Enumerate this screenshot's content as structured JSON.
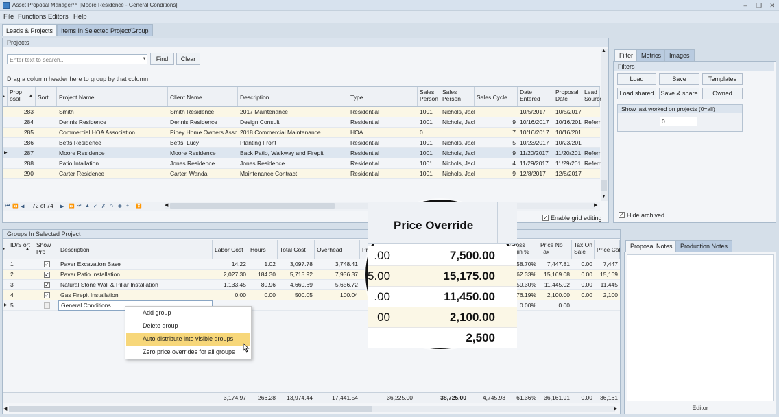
{
  "window": {
    "title": "Asset Proposal Manager™ [Moore Residence - General Conditions]",
    "controls": [
      "–",
      "❐",
      "✕"
    ]
  },
  "menu": [
    "File",
    "Functions",
    "Editors",
    "Help"
  ],
  "main_tabs": [
    "Leads & Projects",
    "Items In Selected Project/Group"
  ],
  "projects": {
    "header": "Projects",
    "search_placeholder": "Enter text to search...",
    "find_label": "Find",
    "clear_label": "Clear",
    "group_hint": "Drag a column header here to group by that column",
    "columns": [
      "Prop osal",
      "Sort",
      "Project Name",
      "Client Name",
      "Description",
      "Type",
      "Sales Person",
      "Sales Person",
      "Sales Cycle",
      "Date Entered",
      "Proposal Date",
      "Lead Source"
    ],
    "rows": [
      {
        "id": "283",
        "name": "Smith",
        "client": "Smith Residence",
        "desc": "2017 Maintenance",
        "type": "Residential",
        "sp": "1001",
        "spn": "Nichols, Jacl",
        "cycle": "",
        "entered": "10/5/2017",
        "prop": "10/5/2017",
        "lead": ""
      },
      {
        "id": "284",
        "name": "Dennis Residence",
        "client": "Dennis Residence",
        "desc": "Design Consult",
        "type": "Residential",
        "sp": "1001",
        "spn": "Nichols, Jacl",
        "cycle": "9",
        "entered": "10/16/2017",
        "prop": "10/16/201",
        "lead": "Referr"
      },
      {
        "id": "285",
        "name": "Commercial HOA Association",
        "client": "Piney Home Owners Assc",
        "desc": "2018 Commercial Maintenance",
        "type": "HOA",
        "sp": "0",
        "spn": "",
        "cycle": "7",
        "entered": "10/16/2017",
        "prop": "10/16/201",
        "lead": ""
      },
      {
        "id": "286",
        "name": "Betts Residence",
        "client": "Betts, Lucy",
        "desc": "Planting Front",
        "type": "Residential",
        "sp": "1001",
        "spn": "Nichols, Jacl",
        "cycle": "5",
        "entered": "10/23/2017",
        "prop": "10/23/201",
        "lead": ""
      },
      {
        "id": "287",
        "name": "Moore Residence",
        "client": "Moore Residence",
        "desc": "Back Patio, Walkway and Firepit",
        "type": "Residential",
        "sp": "1001",
        "spn": "Nichols, Jacl",
        "cycle": "9",
        "entered": "11/20/2017",
        "prop": "11/20/201",
        "lead": "Referr"
      },
      {
        "id": "288",
        "name": "Patio Intallation",
        "client": "Jones Residence",
        "desc": "Jones Residence",
        "type": "Residential",
        "sp": "1001",
        "spn": "Nichols, Jacl",
        "cycle": "4",
        "entered": "11/29/2017",
        "prop": "11/29/201",
        "lead": "Referr"
      },
      {
        "id": "290",
        "name": "Carter Residence",
        "client": "Carter, Wanda",
        "desc": "Maintenance Contract",
        "type": "Residential",
        "sp": "1001",
        "spn": "Nichols, Jacl",
        "cycle": "9",
        "entered": "12/8/2017",
        "prop": "12/8/2017",
        "lead": ""
      }
    ],
    "nav_position": "72 of 74",
    "nav_icons": [
      "⏮",
      "⏪",
      "◀",
      "▶",
      "⏩",
      "⏭",
      "▲",
      "✓",
      "✗",
      "↷",
      "✱",
      "+",
      "⏬"
    ],
    "enable_editing_label": "Enable grid editing"
  },
  "filter_panel": {
    "tabs": [
      "Filter",
      "Metrics",
      "Images"
    ],
    "header": "Filters",
    "buttons": [
      "Load",
      "Save",
      "Templates",
      "Load shared",
      "Save & share",
      "Owned"
    ],
    "last_worked_label": "Show last worked on projects (0=all)",
    "last_worked_value": "0",
    "hide_archived_label": "Hide archived"
  },
  "groups": {
    "header": "Groups In Selected Project",
    "columns": [
      "ID/S ort",
      "Show Pro",
      "Description",
      "Labor Cost",
      "Hours",
      "Total Cost",
      "Overhead",
      "Pr",
      "Gross argin %",
      "Price No Tax",
      "Tax On Sale",
      "Price Cal"
    ],
    "rows": [
      {
        "id": "1",
        "show": true,
        "desc": "Paver Excavation Base",
        "labor": "14.22",
        "hours": "1.02",
        "total": "3,097.78",
        "overhead": "3,748.41",
        "margin": "58.70%",
        "pnt": "7,447.81",
        "tax": "0.00",
        "pc": "7,447"
      },
      {
        "id": "2",
        "show": true,
        "desc": "Paver Patio Installation",
        "labor": "2,027.30",
        "hours": "184.30",
        "total": "5,715.92",
        "overhead": "7,936.37",
        "margin": "62.33%",
        "pnt": "15,169.08",
        "tax": "0.00",
        "pc": "15,169"
      },
      {
        "id": "3",
        "show": true,
        "desc": "Natural Stone Wall & Pillar Installation",
        "labor": "1,133.45",
        "hours": "80.96",
        "total": "4,660.69",
        "overhead": "5,656.72",
        "margin": "59.30%",
        "pnt": "11,445.02",
        "tax": "0.00",
        "pc": "11,445"
      },
      {
        "id": "4",
        "show": true,
        "desc": "Gas Firepit Installation",
        "labor": "0.00",
        "hours": "0.00",
        "total": "500.05",
        "overhead": "100.04",
        "margin": "76.19%",
        "pnt": "2,100.00",
        "tax": "0.00",
        "pc": "2,100"
      },
      {
        "id": "5",
        "show": false,
        "desc": "General Conditions",
        "labor": "",
        "hours": "",
        "total": "",
        "overhead": "",
        "margin": "0.00%",
        "pnt": "0.00",
        "tax": "",
        "pc": ""
      }
    ],
    "totals": {
      "labor": "3,174.97",
      "hours": "266.28",
      "total": "13,974.44",
      "overhead": "17,441.54",
      "price": "36,225.00",
      "override": "38,725.00",
      "v": "4,745.93",
      "margin": "61.36%",
      "pnt": "36,161.91",
      "tax": "0.00",
      "pc": "36,161"
    }
  },
  "context_menu": [
    "Add group",
    "Delete group",
    "Auto distribute into visible groups",
    "Zero price overrides for all groups"
  ],
  "magnifier": {
    "column_title": "Price Override",
    "left_fragments": [
      ".00",
      "5.00",
      ".00",
      "00"
    ],
    "values": [
      "7,500.00",
      "15,175.00",
      "11,450.00",
      "2,100.00",
      "2,500"
    ]
  },
  "notes": {
    "tabs": [
      "Proposal Notes",
      "Production Notes"
    ],
    "editor_label": "Editor"
  },
  "colors": {
    "accent": "#f7d77a",
    "alt_row": "#fbf7e6",
    "panel_header": "#dbe4ee"
  }
}
